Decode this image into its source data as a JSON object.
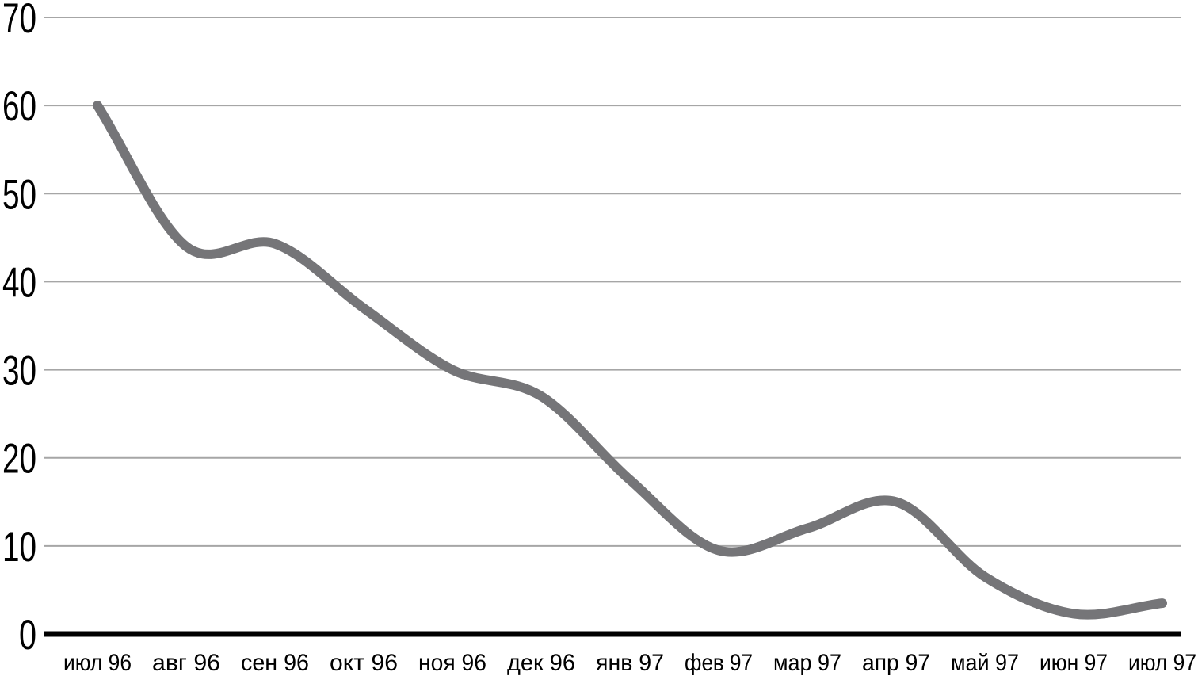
{
  "chart_data": {
    "type": "line",
    "title": "",
    "xlabel": "",
    "ylabel": "",
    "categories": [
      "июл 96",
      "авг 96",
      "сен 96",
      "окт 96",
      "ноя 96",
      "дек 96",
      "янв 97",
      "фев 97",
      "мар 97",
      "апр 97",
      "май 97",
      "июн 97",
      "июл 97"
    ],
    "values": [
      60,
      44,
      44.3,
      37,
      30,
      27,
      17.5,
      9.5,
      12,
      15,
      6.5,
      2.3,
      3.5
    ],
    "ylim": [
      0,
      70
    ],
    "yticks": [
      0,
      10,
      20,
      30,
      40,
      50,
      60,
      70
    ],
    "grid": "horizontal",
    "legend": "none",
    "smooth": true,
    "line_color": "#757578",
    "line_width": 12,
    "axis_color": "#000000",
    "axis_width": 7,
    "gridline_color": "#a6a6a6",
    "gridline_width": 2,
    "label_color": "#000000",
    "background": "#ffffff"
  }
}
